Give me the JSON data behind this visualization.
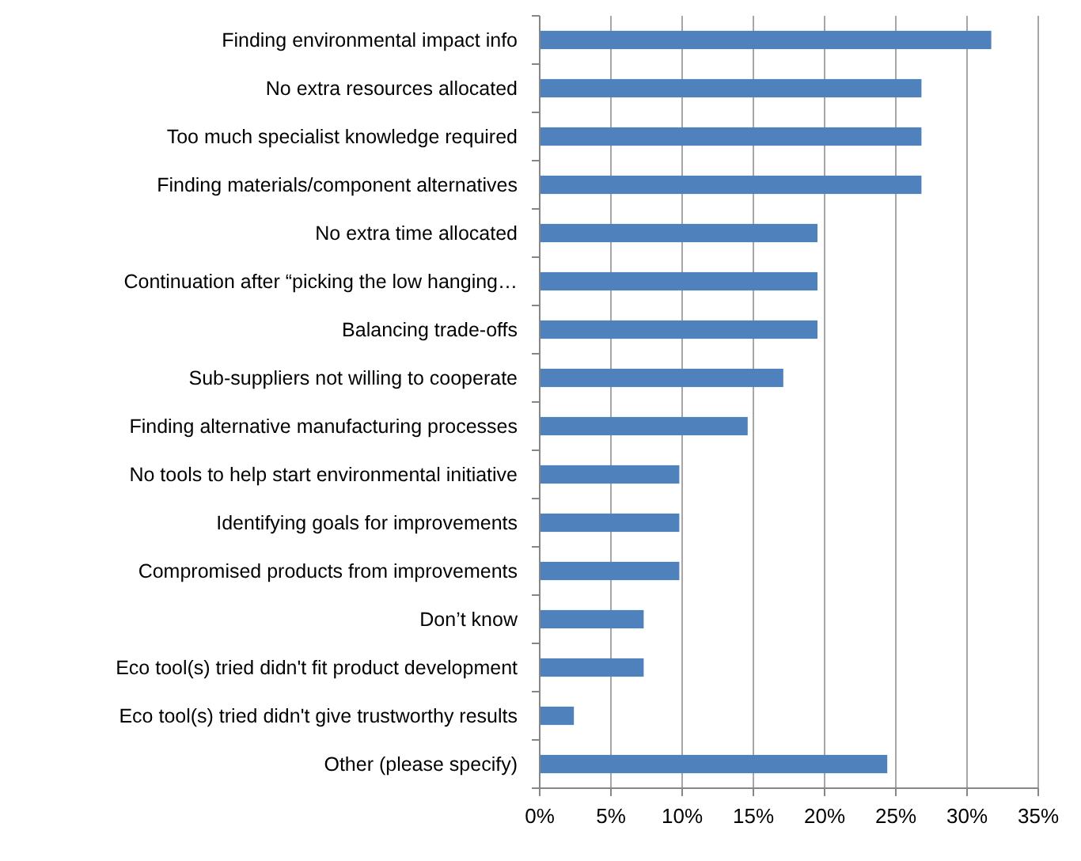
{
  "chart_data": {
    "type": "bar",
    "orientation": "horizontal",
    "categories": [
      "Finding environmental impact info",
      "No extra resources allocated",
      "Too much specialist knowledge required",
      "Finding materials/component alternatives",
      "No extra time allocated",
      "Continuation after “picking the low hanging…",
      "Balancing trade-offs",
      "Sub-suppliers not willing to cooperate",
      "Finding alternative manufacturing processes",
      "No tools to help start environmental initiative",
      "Identifying goals for improvements",
      "Compromised products from improvements",
      "Don’t know",
      "Eco tool(s) tried didn't fit product development",
      "Eco tool(s) tried didn't give trustworthy results",
      "Other (please specify)"
    ],
    "values": [
      31.7,
      26.8,
      26.8,
      26.8,
      19.5,
      19.5,
      19.5,
      17.1,
      14.6,
      9.8,
      9.8,
      9.8,
      7.3,
      7.3,
      2.4,
      24.4
    ],
    "color": "#4f81bd",
    "xlim": [
      0,
      35
    ],
    "xticks": [
      {
        "value": 0,
        "label": "0%"
      },
      {
        "value": 5,
        "label": "5%"
      },
      {
        "value": 10,
        "label": "10%"
      },
      {
        "value": 15,
        "label": "15%"
      },
      {
        "value": 20,
        "label": "20%"
      },
      {
        "value": 25,
        "label": "25%"
      },
      {
        "value": 30,
        "label": "30%"
      },
      {
        "value": 35,
        "label": "35%"
      }
    ],
    "grid": "x"
  }
}
